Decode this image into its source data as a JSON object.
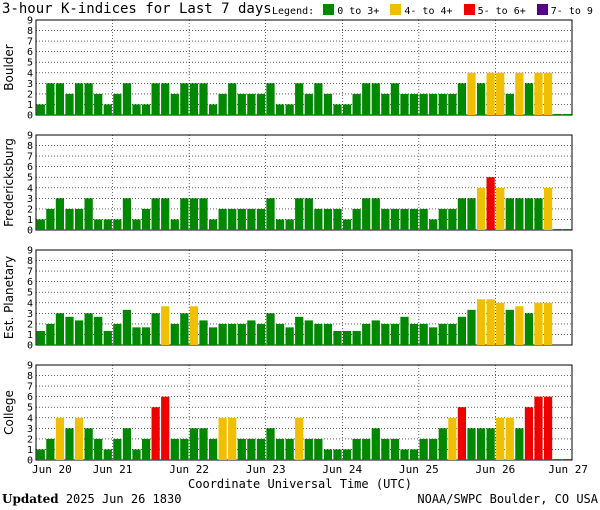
{
  "title": "3-hour K-indices for Last 7 days",
  "legend": {
    "label": "Legend:",
    "items": [
      {
        "label": "0 to 3+",
        "color": "#008800"
      },
      {
        "label": "4- to 4+",
        "color": "#f0c000"
      },
      {
        "label": "5- to 6+",
        "color": "#ee0000"
      },
      {
        "label": "7- to 9",
        "color": "#550088"
      }
    ]
  },
  "footer": {
    "updated_label": "Updated",
    "updated_value": "2025 Jun 26 1830",
    "credit": "NOAA/SWPC Boulder, CO USA"
  },
  "chart_data": {
    "type": "bar",
    "xlabel": "Coordinate Universal Time (UTC)",
    "x_ticks": [
      "Jun 20",
      "Jun 21",
      "Jun 22",
      "Jun 23",
      "Jun 24",
      "Jun 25",
      "Jun 26",
      "Jun 27"
    ],
    "ylim": [
      0,
      9
    ],
    "y_ticks": [
      "0",
      "1",
      "2",
      "3",
      "4",
      "5",
      "6",
      "7",
      "8",
      "9"
    ],
    "grid": true,
    "bars_per_day": 8,
    "panels": [
      {
        "name": "Boulder",
        "values": [
          1,
          3,
          3,
          2,
          3,
          3,
          2,
          1,
          2,
          3,
          1,
          1,
          3,
          3,
          2,
          3,
          3,
          3,
          1,
          2,
          3,
          2,
          2,
          2,
          3,
          1,
          1,
          3,
          2,
          3,
          2,
          1,
          1,
          2,
          3,
          3,
          2,
          3,
          2,
          2,
          2,
          2,
          2,
          2,
          3,
          4,
          3,
          4,
          4,
          2,
          4,
          3,
          4,
          4,
          0.1,
          0.1
        ]
      },
      {
        "name": "Fredericksburg",
        "values": [
          1,
          2,
          3,
          2,
          2,
          3,
          1,
          1,
          1,
          3,
          1,
          2,
          3,
          3,
          1,
          3,
          3,
          3,
          1,
          2,
          2,
          2,
          2,
          2,
          3,
          1,
          1,
          3,
          3,
          2,
          2,
          2,
          1,
          2,
          3,
          3,
          2,
          2,
          2,
          2,
          2,
          1,
          2,
          2,
          3,
          3,
          4,
          5,
          4,
          3,
          3,
          3,
          3,
          4,
          0.1,
          0.1
        ]
      },
      {
        "name": "Est. Planetary",
        "values": [
          1.33,
          2,
          3,
          2.67,
          2.33,
          3,
          2.67,
          1.33,
          2,
          3.33,
          1.67,
          1.67,
          3,
          3.67,
          2,
          3,
          3.67,
          2.33,
          1.67,
          2,
          2,
          2,
          2.33,
          2,
          3,
          2,
          1.67,
          2.67,
          2.33,
          2,
          2,
          1.33,
          1.33,
          1.33,
          2,
          2.33,
          2,
          2,
          2.67,
          2,
          2,
          1.67,
          2,
          2,
          2.67,
          3.33,
          4.33,
          4.33,
          4,
          3.33,
          3.67,
          3,
          4,
          4
        ]
      },
      {
        "name": "College",
        "values": [
          1,
          2,
          4,
          3,
          4,
          3,
          2,
          1,
          2,
          3,
          1,
          2,
          5,
          6,
          2,
          2,
          3,
          3,
          2,
          4,
          4,
          2,
          2,
          2,
          3,
          2,
          2,
          4,
          2,
          2,
          1,
          1,
          1,
          2,
          2,
          3,
          2,
          2,
          1,
          1,
          2,
          2,
          3,
          4,
          5,
          3,
          3,
          3,
          4,
          4,
          3,
          5,
          6,
          6,
          0.1,
          0.1
        ]
      }
    ]
  }
}
